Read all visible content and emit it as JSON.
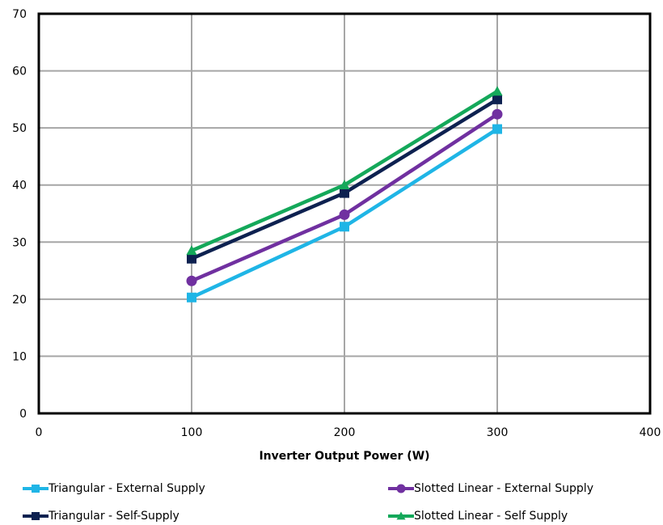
{
  "chart_data": {
    "type": "line",
    "xlabel": "Inverter Output Power (W)",
    "ylabel": "",
    "xlim": [
      0,
      400
    ],
    "ylim": [
      0,
      70
    ],
    "xticks": [
      0,
      100,
      200,
      300,
      400
    ],
    "yticks": [
      0,
      10,
      20,
      30,
      40,
      50,
      60,
      70
    ],
    "grid": true,
    "legend_position": "bottom",
    "series": [
      {
        "name": "Triangular - External Supply",
        "color": "#1fb5e6",
        "marker": "square",
        "x": [
          100,
          200,
          300
        ],
        "y": [
          20.3,
          32.7,
          49.8
        ]
      },
      {
        "name": "Slotted Linear - External Supply",
        "color": "#7030a0",
        "marker": "circle",
        "x": [
          100,
          200,
          300
        ],
        "y": [
          23.2,
          34.8,
          52.4
        ]
      },
      {
        "name": "Triangular - Self-Supply",
        "color": "#0d2150",
        "marker": "square",
        "x": [
          100,
          200,
          300
        ],
        "y": [
          27.1,
          38.6,
          55.0
        ]
      },
      {
        "name": "Slotted Linear - Self Supply",
        "color": "#14a85a",
        "marker": "triangle",
        "x": [
          100,
          200,
          300
        ],
        "y": [
          28.5,
          40.0,
          56.4
        ]
      }
    ]
  }
}
